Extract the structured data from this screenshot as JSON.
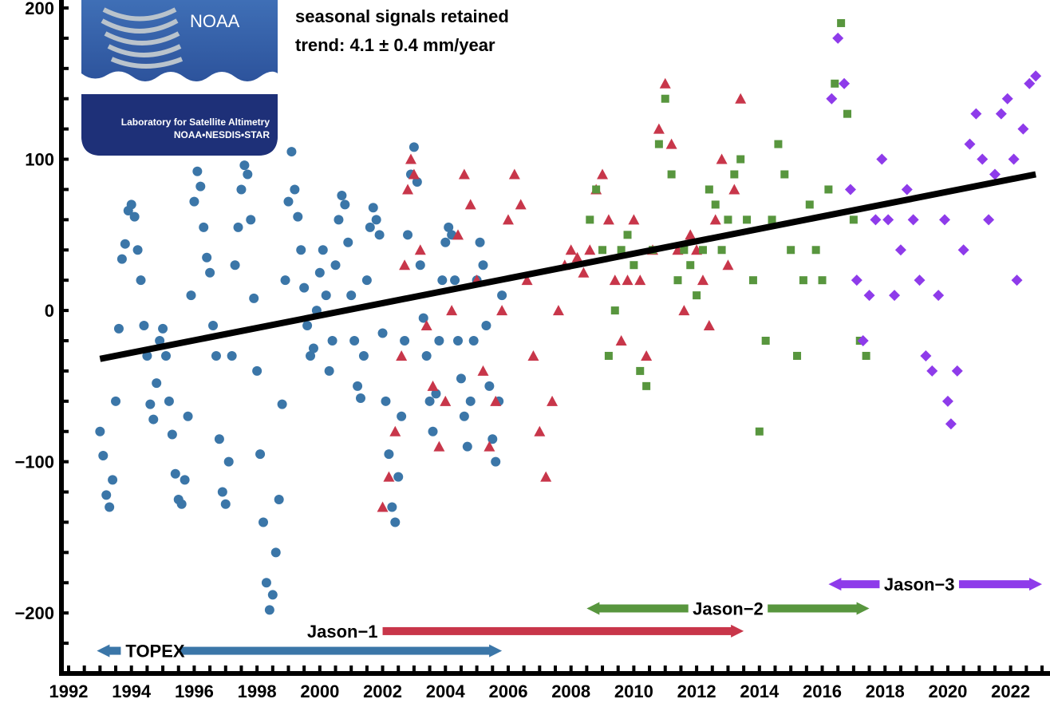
{
  "chart_data": {
    "type": "scatter",
    "xlim": [
      1992,
      2023
    ],
    "ylim": [
      -240,
      200
    ],
    "x_ticks": [
      "1992",
      "1994",
      "1996",
      "1998",
      "2000",
      "2002",
      "2004",
      "2006",
      "2008",
      "2010",
      "2012",
      "2014",
      "2016",
      "2018",
      "2020",
      "2022"
    ],
    "y_ticks": [
      "200",
      "100",
      "0",
      "−100",
      "−200"
    ],
    "y_tick_values": [
      200,
      100,
      0,
      -100,
      -200
    ],
    "annotations": [
      "seasonal signals retained",
      "trend:  4.1 ± 0.4 mm/year"
    ],
    "trend": {
      "x": [
        1993.0,
        2022.8
      ],
      "y": [
        -32,
        90
      ]
    },
    "series": [
      {
        "name": "TOPEX",
        "marker": "circle",
        "color": "#3b76a8",
        "mission_span": [
          1992.9,
          2005.8
        ],
        "points": [
          [
            1993.0,
            -80
          ],
          [
            1993.1,
            -96
          ],
          [
            1993.2,
            -122
          ],
          [
            1993.3,
            -130
          ],
          [
            1993.4,
            -112
          ],
          [
            1993.5,
            -60
          ],
          [
            1993.6,
            -12
          ],
          [
            1993.7,
            34
          ],
          [
            1993.8,
            44
          ],
          [
            1993.9,
            66
          ],
          [
            1994.0,
            70
          ],
          [
            1994.1,
            62
          ],
          [
            1994.2,
            40
          ],
          [
            1994.3,
            20
          ],
          [
            1994.4,
            -10
          ],
          [
            1994.5,
            -30
          ],
          [
            1994.6,
            -62
          ],
          [
            1994.7,
            -72
          ],
          [
            1994.8,
            -48
          ],
          [
            1994.9,
            -20
          ],
          [
            1995.0,
            -12
          ],
          [
            1995.1,
            -30
          ],
          [
            1995.2,
            -60
          ],
          [
            1995.3,
            -82
          ],
          [
            1995.4,
            -108
          ],
          [
            1995.5,
            -125
          ],
          [
            1995.6,
            -128
          ],
          [
            1995.7,
            -112
          ],
          [
            1995.8,
            -70
          ],
          [
            1995.9,
            10
          ],
          [
            1996.0,
            72
          ],
          [
            1996.1,
            92
          ],
          [
            1996.2,
            82
          ],
          [
            1996.3,
            55
          ],
          [
            1996.4,
            35
          ],
          [
            1996.5,
            25
          ],
          [
            1996.6,
            -10
          ],
          [
            1996.7,
            -30
          ],
          [
            1996.8,
            -85
          ],
          [
            1996.9,
            -120
          ],
          [
            1997.0,
            -128
          ],
          [
            1997.1,
            -100
          ],
          [
            1997.2,
            -30
          ],
          [
            1997.3,
            30
          ],
          [
            1997.4,
            55
          ],
          [
            1997.5,
            80
          ],
          [
            1997.6,
            96
          ],
          [
            1997.7,
            90
          ],
          [
            1997.8,
            60
          ],
          [
            1997.9,
            8
          ],
          [
            1998.0,
            -40
          ],
          [
            1998.1,
            -95
          ],
          [
            1998.2,
            -140
          ],
          [
            1998.3,
            -180
          ],
          [
            1998.4,
            -198
          ],
          [
            1998.5,
            -188
          ],
          [
            1998.6,
            -160
          ],
          [
            1998.7,
            -125
          ],
          [
            1998.8,
            -62
          ],
          [
            1998.9,
            20
          ],
          [
            1999.0,
            72
          ],
          [
            1999.1,
            105
          ],
          [
            1999.2,
            80
          ],
          [
            1999.3,
            62
          ],
          [
            1999.4,
            40
          ],
          [
            1999.5,
            15
          ],
          [
            1999.6,
            -10
          ],
          [
            1999.7,
            -30
          ],
          [
            1999.8,
            -25
          ],
          [
            1999.9,
            0
          ],
          [
            2000.0,
            25
          ],
          [
            2000.1,
            40
          ],
          [
            2000.2,
            10
          ],
          [
            2000.3,
            -40
          ],
          [
            2000.4,
            -20
          ],
          [
            2000.5,
            30
          ],
          [
            2000.6,
            60
          ],
          [
            2000.7,
            76
          ],
          [
            2000.8,
            70
          ],
          [
            2000.9,
            45
          ],
          [
            2001.0,
            10
          ],
          [
            2001.1,
            -20
          ],
          [
            2001.2,
            -50
          ],
          [
            2001.3,
            -58
          ],
          [
            2001.4,
            -30
          ],
          [
            2001.5,
            20
          ],
          [
            2001.6,
            55
          ],
          [
            2001.7,
            68
          ],
          [
            2001.8,
            60
          ],
          [
            2001.9,
            50
          ],
          [
            2002.0,
            -15
          ],
          [
            2002.1,
            -60
          ],
          [
            2002.2,
            -95
          ],
          [
            2002.3,
            -130
          ],
          [
            2002.4,
            -140
          ],
          [
            2002.5,
            -110
          ],
          [
            2002.6,
            -70
          ],
          [
            2002.7,
            -20
          ],
          [
            2002.8,
            50
          ],
          [
            2002.9,
            90
          ],
          [
            2003.0,
            108
          ],
          [
            2003.1,
            85
          ],
          [
            2003.2,
            30
          ],
          [
            2003.3,
            -5
          ],
          [
            2003.4,
            -30
          ],
          [
            2003.5,
            -60
          ],
          [
            2003.6,
            -80
          ],
          [
            2003.7,
            -55
          ],
          [
            2003.8,
            -20
          ],
          [
            2003.9,
            20
          ],
          [
            2004.0,
            45
          ],
          [
            2004.1,
            55
          ],
          [
            2004.2,
            50
          ],
          [
            2004.3,
            20
          ],
          [
            2004.4,
            -20
          ],
          [
            2004.5,
            -45
          ],
          [
            2004.6,
            -70
          ],
          [
            2004.7,
            -90
          ],
          [
            2004.8,
            -60
          ],
          [
            2004.9,
            -20
          ],
          [
            2005.0,
            20
          ],
          [
            2005.1,
            45
          ],
          [
            2005.2,
            30
          ],
          [
            2005.3,
            -10
          ],
          [
            2005.4,
            -50
          ],
          [
            2005.5,
            -85
          ],
          [
            2005.6,
            -100
          ],
          [
            2005.7,
            -60
          ],
          [
            2005.8,
            10
          ]
        ]
      },
      {
        "name": "Jason−1",
        "marker": "triangle",
        "color": "#c8364a",
        "mission_span": [
          2002.0,
          2013.5
        ],
        "points": [
          [
            2002.0,
            -130
          ],
          [
            2002.2,
            -110
          ],
          [
            2002.4,
            -80
          ],
          [
            2002.6,
            -30
          ],
          [
            2002.7,
            30
          ],
          [
            2002.8,
            80
          ],
          [
            2002.9,
            100
          ],
          [
            2003.0,
            90
          ],
          [
            2003.2,
            40
          ],
          [
            2003.4,
            -10
          ],
          [
            2003.6,
            -50
          ],
          [
            2003.8,
            -90
          ],
          [
            2004.0,
            -60
          ],
          [
            2004.2,
            0
          ],
          [
            2004.4,
            50
          ],
          [
            2004.6,
            90
          ],
          [
            2004.8,
            70
          ],
          [
            2005.0,
            20
          ],
          [
            2005.2,
            -40
          ],
          [
            2005.4,
            -90
          ],
          [
            2005.6,
            -60
          ],
          [
            2005.8,
            0
          ],
          [
            2006.0,
            60
          ],
          [
            2006.2,
            90
          ],
          [
            2006.4,
            70
          ],
          [
            2006.6,
            20
          ],
          [
            2006.8,
            -30
          ],
          [
            2007.0,
            -80
          ],
          [
            2007.2,
            -110
          ],
          [
            2007.4,
            -60
          ],
          [
            2007.6,
            0
          ],
          [
            2007.8,
            30
          ],
          [
            2008.0,
            40
          ],
          [
            2008.2,
            35
          ],
          [
            2008.4,
            25
          ],
          [
            2008.6,
            40
          ],
          [
            2008.8,
            80
          ],
          [
            2009.0,
            90
          ],
          [
            2009.2,
            60
          ],
          [
            2009.4,
            20
          ],
          [
            2009.6,
            -20
          ],
          [
            2009.8,
            20
          ],
          [
            2010.0,
            60
          ],
          [
            2010.2,
            20
          ],
          [
            2010.4,
            -30
          ],
          [
            2010.6,
            40
          ],
          [
            2010.8,
            120
          ],
          [
            2011.0,
            150
          ],
          [
            2011.2,
            110
          ],
          [
            2011.4,
            40
          ],
          [
            2011.6,
            0
          ],
          [
            2011.8,
            50
          ],
          [
            2012.0,
            40
          ],
          [
            2012.2,
            20
          ],
          [
            2012.4,
            -10
          ],
          [
            2012.6,
            60
          ],
          [
            2012.8,
            100
          ],
          [
            2013.0,
            30
          ],
          [
            2013.2,
            80
          ],
          [
            2013.4,
            140
          ]
        ]
      },
      {
        "name": "Jason−2",
        "marker": "square",
        "color": "#58963e",
        "mission_span": [
          2008.5,
          2017.5
        ],
        "points": [
          [
            2008.6,
            60
          ],
          [
            2008.8,
            80
          ],
          [
            2009.0,
            40
          ],
          [
            2009.2,
            -30
          ],
          [
            2009.4,
            0
          ],
          [
            2009.6,
            40
          ],
          [
            2009.8,
            50
          ],
          [
            2010.0,
            30
          ],
          [
            2010.2,
            -40
          ],
          [
            2010.4,
            -50
          ],
          [
            2010.6,
            40
          ],
          [
            2010.8,
            110
          ],
          [
            2011.0,
            140
          ],
          [
            2011.2,
            90
          ],
          [
            2011.4,
            20
          ],
          [
            2011.6,
            40
          ],
          [
            2011.8,
            30
          ],
          [
            2012.0,
            10
          ],
          [
            2012.2,
            40
          ],
          [
            2012.4,
            80
          ],
          [
            2012.6,
            70
          ],
          [
            2012.8,
            40
          ],
          [
            2013.0,
            60
          ],
          [
            2013.2,
            90
          ],
          [
            2013.4,
            100
          ],
          [
            2013.6,
            60
          ],
          [
            2013.8,
            20
          ],
          [
            2014.0,
            -80
          ],
          [
            2014.2,
            -20
          ],
          [
            2014.4,
            60
          ],
          [
            2014.6,
            110
          ],
          [
            2014.8,
            90
          ],
          [
            2015.0,
            40
          ],
          [
            2015.2,
            -30
          ],
          [
            2015.4,
            20
          ],
          [
            2015.6,
            70
          ],
          [
            2015.8,
            40
          ],
          [
            2016.0,
            20
          ],
          [
            2016.2,
            80
          ],
          [
            2016.4,
            150
          ],
          [
            2016.6,
            190
          ],
          [
            2016.8,
            130
          ],
          [
            2017.0,
            60
          ],
          [
            2017.2,
            -20
          ],
          [
            2017.4,
            -30
          ]
        ]
      },
      {
        "name": "Jason−3",
        "marker": "diamond",
        "color": "#8e3bea",
        "mission_span": [
          2016.2,
          2023.0
        ],
        "points": [
          [
            2016.3,
            140
          ],
          [
            2016.5,
            180
          ],
          [
            2016.7,
            150
          ],
          [
            2016.9,
            80
          ],
          [
            2017.1,
            20
          ],
          [
            2017.3,
            -20
          ],
          [
            2017.5,
            10
          ],
          [
            2017.7,
            60
          ],
          [
            2017.9,
            100
          ],
          [
            2018.1,
            60
          ],
          [
            2018.3,
            10
          ],
          [
            2018.5,
            40
          ],
          [
            2018.7,
            80
          ],
          [
            2018.9,
            60
          ],
          [
            2019.1,
            20
          ],
          [
            2019.3,
            -30
          ],
          [
            2019.5,
            -40
          ],
          [
            2019.7,
            10
          ],
          [
            2019.9,
            60
          ],
          [
            2020.0,
            -60
          ],
          [
            2020.1,
            -75
          ],
          [
            2020.3,
            -40
          ],
          [
            2020.5,
            40
          ],
          [
            2020.7,
            110
          ],
          [
            2020.9,
            130
          ],
          [
            2021.1,
            100
          ],
          [
            2021.3,
            60
          ],
          [
            2021.5,
            90
          ],
          [
            2021.7,
            130
          ],
          [
            2021.9,
            140
          ],
          [
            2022.1,
            100
          ],
          [
            2022.2,
            20
          ],
          [
            2022.4,
            120
          ],
          [
            2022.6,
            150
          ],
          [
            2022.8,
            155
          ]
        ]
      }
    ]
  },
  "logo": {
    "name": "NOAA",
    "line1": "Laboratory for Satellite Altimetry",
    "line2": "NOAA•NESDIS•STAR"
  }
}
